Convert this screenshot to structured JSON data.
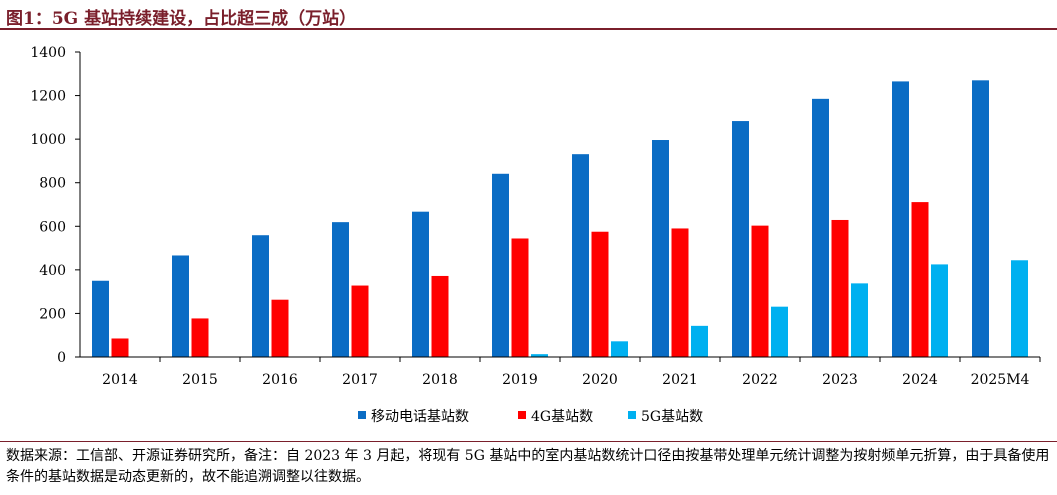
{
  "header": {
    "title": "图1：5G 基站持续建设，占比超三成（万站）"
  },
  "footer": {
    "source": "数据来源：工信部、开源证券研究所，备注：自 2023 年 3 月起，将现有 5G 基站中的室内基站数统计口径由按基带处理单元统计调整为按射频单元折算，由于具备使用条件的基站数据是动态更新的，故不能追溯调整以往数据。"
  },
  "chart_data": {
    "type": "bar",
    "title": "图1：5G 基站持续建设，占比超三成（万站）",
    "categories": [
      "2014",
      "2015",
      "2016",
      "2017",
      "2018",
      "2019",
      "2020",
      "2021",
      "2022",
      "2023",
      "2024",
      "2025M4"
    ],
    "series": [
      {
        "name": "移动电话基站数",
        "color": "#0a6cc4",
        "values": [
          350,
          466,
          559,
          619,
          667,
          841,
          931,
          996,
          1083,
          1185,
          1265,
          1270
        ]
      },
      {
        "name": "4G基站数",
        "color": "#ff0000",
        "values": [
          85,
          177,
          263,
          328,
          372,
          544,
          575,
          590,
          603,
          629,
          711,
          null
        ]
      },
      {
        "name": "5G基站数",
        "color": "#00b0f0",
        "values": [
          null,
          null,
          null,
          null,
          null,
          13,
          72,
          143,
          231,
          338,
          425,
          444
        ]
      }
    ],
    "ylim": [
      0,
      1400
    ],
    "yticks": [
      0,
      200,
      400,
      600,
      800,
      1000,
      1200,
      1400
    ],
    "legend": "bottom",
    "grid": false
  }
}
